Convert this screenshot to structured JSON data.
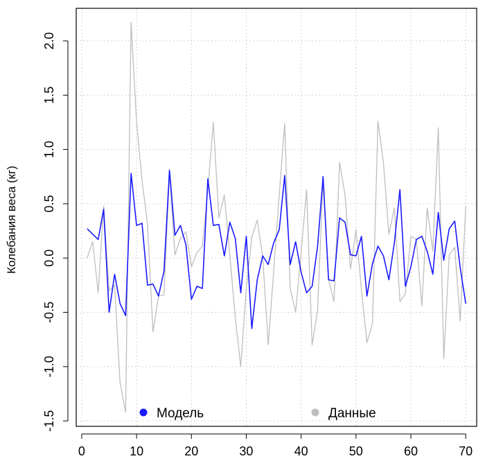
{
  "chart_data": {
    "type": "line",
    "xlabel": "",
    "ylabel": "Колебания веса (кг)",
    "xlim": [
      -1,
      72
    ],
    "ylim": [
      -1.55,
      2.3
    ],
    "xticks": [
      0,
      10,
      20,
      30,
      40,
      50,
      60,
      70
    ],
    "yticks": [
      -1.5,
      -1.0,
      -0.5,
      0.0,
      0.5,
      1.0,
      1.5,
      2.0
    ],
    "ytick_labels": [
      "-1.5",
      "-1.0",
      "-0.5",
      "0.0",
      "0.5",
      "1.0",
      "1.5",
      "2.0"
    ],
    "grid": true,
    "legend_position": "bottom",
    "x": [
      1,
      2,
      3,
      4,
      5,
      6,
      7,
      8,
      9,
      10,
      11,
      12,
      13,
      14,
      15,
      16,
      17,
      18,
      19,
      20,
      21,
      22,
      23,
      24,
      25,
      26,
      27,
      28,
      29,
      30,
      31,
      32,
      33,
      34,
      35,
      36,
      37,
      38,
      39,
      40,
      41,
      42,
      43,
      44,
      45,
      46,
      47,
      48,
      49,
      50,
      51,
      52,
      53,
      54,
      55,
      56,
      57,
      58,
      59,
      60,
      61,
      62,
      63,
      64,
      65,
      66,
      67,
      68,
      69,
      70
    ],
    "series": [
      {
        "name": "Модель",
        "color": "#1a1aff",
        "values": [
          0.27,
          0.22,
          0.17,
          0.45,
          -0.5,
          -0.15,
          -0.42,
          -0.53,
          0.78,
          0.3,
          0.32,
          -0.25,
          -0.24,
          -0.35,
          -0.12,
          0.81,
          0.21,
          0.3,
          0.12,
          -0.38,
          -0.26,
          -0.28,
          0.73,
          0.3,
          0.31,
          0.02,
          0.33,
          0.18,
          -0.32,
          0.2,
          -0.65,
          -0.2,
          0.02,
          -0.06,
          0.14,
          0.26,
          0.76,
          -0.06,
          0.15,
          -0.13,
          -0.32,
          -0.26,
          0.11,
          0.75,
          -0.2,
          -0.21,
          0.37,
          0.33,
          0.03,
          0.02,
          0.2,
          -0.35,
          -0.05,
          0.11,
          0.02,
          -0.2,
          0.14,
          0.63,
          -0.26,
          -0.08,
          0.17,
          0.2,
          0.06,
          -0.15,
          0.42,
          -0.02,
          0.27,
          0.34,
          -0.09,
          -0.42
        ]
      },
      {
        "name": "Данные",
        "color": "#bebebe",
        "values": [
          0.0,
          0.15,
          -0.32,
          0.48,
          -0.3,
          -0.25,
          -1.15,
          -1.42,
          2.17,
          1.25,
          0.72,
          0.31,
          -0.68,
          -0.35,
          -0.34,
          0.78,
          0.03,
          0.18,
          0.24,
          -0.08,
          0.05,
          0.11,
          0.63,
          1.25,
          0.37,
          0.58,
          0.03,
          -0.55,
          -1.0,
          -0.27,
          0.19,
          0.35,
          0.01,
          -0.8,
          -0.12,
          0.58,
          1.24,
          -0.28,
          -0.5,
          0.05,
          0.63,
          -0.8,
          -0.48,
          0.72,
          -0.2,
          -0.4,
          0.88,
          0.58,
          -0.1,
          0.26,
          -0.3,
          -0.78,
          -0.6,
          1.26,
          0.88,
          0.22,
          0.46,
          -0.4,
          -0.33,
          0.2,
          0.17,
          -0.44,
          0.46,
          0.06,
          1.2,
          -0.93,
          0.03,
          0.1,
          -0.58,
          0.48
        ]
      }
    ]
  }
}
